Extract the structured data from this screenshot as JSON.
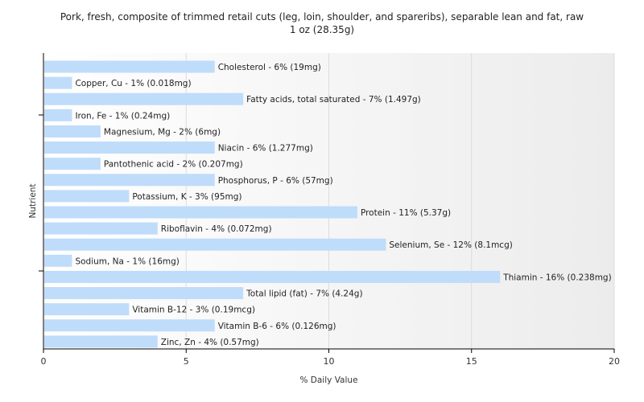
{
  "chart_data": {
    "type": "bar",
    "orientation": "horizontal",
    "title": "Pork, fresh, composite of trimmed retail cuts (leg, loin, shoulder, and spareribs), separable lean and fat, raw",
    "subtitle": "1 oz (28.35g)",
    "xlabel": "% Daily Value",
    "ylabel": "Nutrient",
    "xlim": [
      0,
      20
    ],
    "xticks": [
      0,
      5,
      10,
      15,
      20
    ],
    "grid": true,
    "bar_color": "#bfdcfb",
    "categories": [
      "Cholesterol",
      "Copper, Cu",
      "Fatty acids, total saturated",
      "Iron, Fe",
      "Magnesium, Mg",
      "Niacin",
      "Pantothenic acid",
      "Phosphorus, P",
      "Potassium, K",
      "Protein",
      "Riboflavin",
      "Selenium, Se",
      "Sodium, Na",
      "Thiamin",
      "Total lipid (fat)",
      "Vitamin B-12",
      "Vitamin B-6",
      "Zinc, Zn"
    ],
    "values": [
      6,
      1,
      7,
      1,
      2,
      6,
      2,
      6,
      3,
      11,
      4,
      12,
      1,
      16,
      7,
      3,
      6,
      4
    ],
    "labels": [
      "Cholesterol - 6% (19mg)",
      "Copper, Cu - 1% (0.018mg)",
      "Fatty acids, total saturated - 7% (1.497g)",
      "Iron, Fe - 1% (0.24mg)",
      "Magnesium, Mg - 2% (6mg)",
      "Niacin - 6% (1.277mg)",
      "Pantothenic acid - 2% (0.207mg)",
      "Phosphorus, P - 6% (57mg)",
      "Potassium, K - 3% (95mg)",
      "Protein - 11% (5.37g)",
      "Riboflavin - 4% (0.072mg)",
      "Selenium, Se - 12% (8.1mcg)",
      "Sodium, Na - 1% (16mg)",
      "Thiamin - 16% (0.238mg)",
      "Total lipid (fat) - 7% (4.24g)",
      "Vitamin B-12 - 3% (0.19mcg)",
      "Vitamin B-6 - 6% (0.126mg)",
      "Zinc, Zn - 4% (0.57mg)"
    ]
  }
}
